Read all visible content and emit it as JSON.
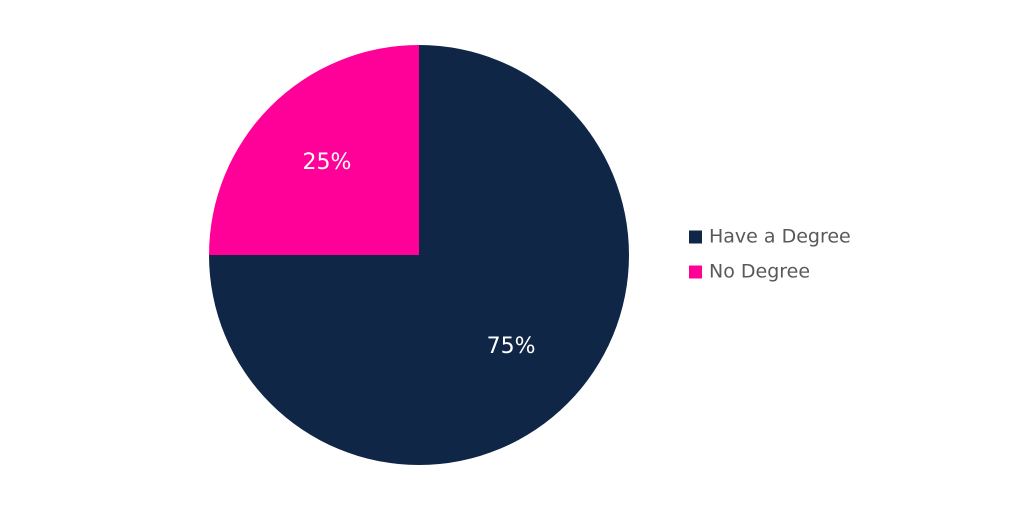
{
  "chart_data": {
    "type": "pie",
    "title": "",
    "categories": [
      "Have a Degree",
      "No Degree"
    ],
    "values": [
      75,
      25
    ],
    "data_labels": [
      "75%",
      "25%"
    ],
    "colors": [
      "#0f2647",
      "#ff0099"
    ],
    "start_angle": "12 o'clock, clockwise",
    "legend": {
      "position": "right",
      "entries": [
        "Have a Degree",
        "No Degree"
      ]
    }
  }
}
